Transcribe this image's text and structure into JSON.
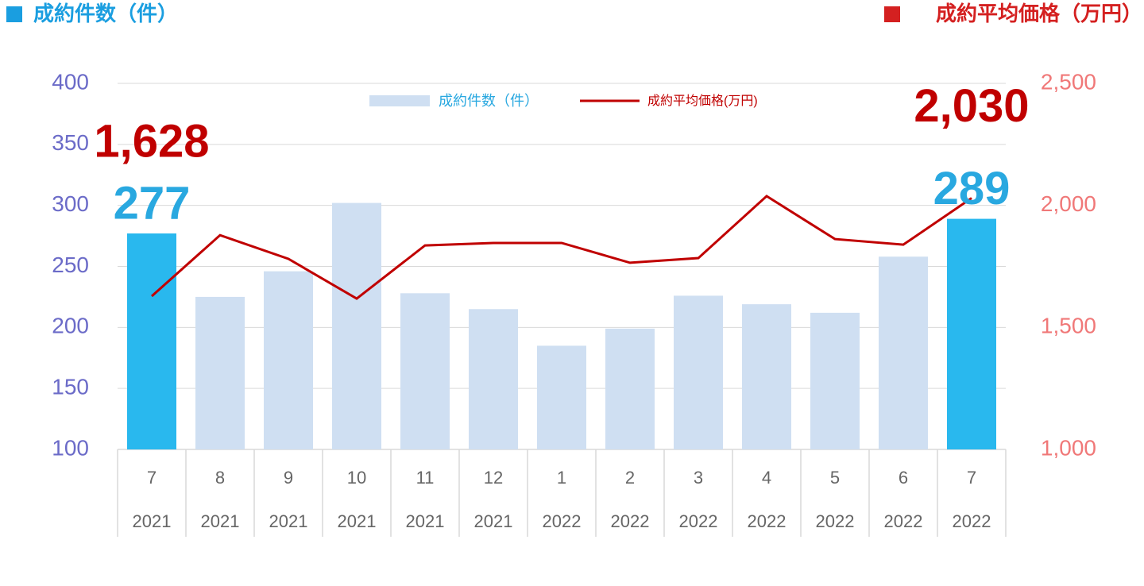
{
  "chart_data": {
    "type": "bar-line",
    "left_axis_title": "成約件数（件）",
    "right_axis_title": "成約平均価格（万円）",
    "categories": [
      "7",
      "8",
      "9",
      "10",
      "11",
      "12",
      "1",
      "2",
      "3",
      "4",
      "5",
      "6",
      "7"
    ],
    "category_years": [
      "2021",
      "2021",
      "2021",
      "2021",
      "2021",
      "2021",
      "2022",
      "2022",
      "2022",
      "2022",
      "2022",
      "2022",
      "2022"
    ],
    "series": [
      {
        "name": "成約件数（件）",
        "type": "bar",
        "color": "#cfdff2",
        "label_color": "#29a8e0",
        "colors": [
          "#29b8ee",
          "#cfdff2",
          "#cfdff2",
          "#cfdff2",
          "#cfdff2",
          "#cfdff2",
          "#cfdff2",
          "#cfdff2",
          "#cfdff2",
          "#cfdff2",
          "#cfdff2",
          "#cfdff2",
          "#29b8ee"
        ],
        "values": [
          277,
          225,
          246,
          302,
          228,
          215,
          185,
          199,
          226,
          219,
          212,
          258,
          289
        ],
        "value_labels": [
          "277",
          null,
          null,
          null,
          null,
          null,
          null,
          null,
          null,
          null,
          null,
          null,
          "289"
        ]
      },
      {
        "name": "成約平均価格(万円)",
        "type": "line",
        "axis": "y2",
        "color": "#c00000",
        "values": [
          1628,
          1878,
          1781,
          1618,
          1836,
          1846,
          1846,
          1765,
          1784,
          2038,
          1862,
          1839,
          2030
        ],
        "value_labels": [
          "1,628",
          null,
          null,
          null,
          null,
          null,
          null,
          null,
          null,
          null,
          null,
          null,
          "2,030"
        ]
      }
    ],
    "ylim": [
      100,
      400
    ],
    "yticks": [
      100,
      150,
      200,
      250,
      300,
      350,
      400
    ],
    "y2lim": [
      1000,
      2500
    ],
    "y2ticks": [
      {
        "value": 1000,
        "label": "1,000"
      },
      {
        "value": 1500,
        "label": "1,500"
      },
      {
        "value": 2000,
        "label": "2,000"
      },
      {
        "value": 2500,
        "label": "2,500"
      }
    ],
    "grid": true,
    "legend": "top"
  }
}
